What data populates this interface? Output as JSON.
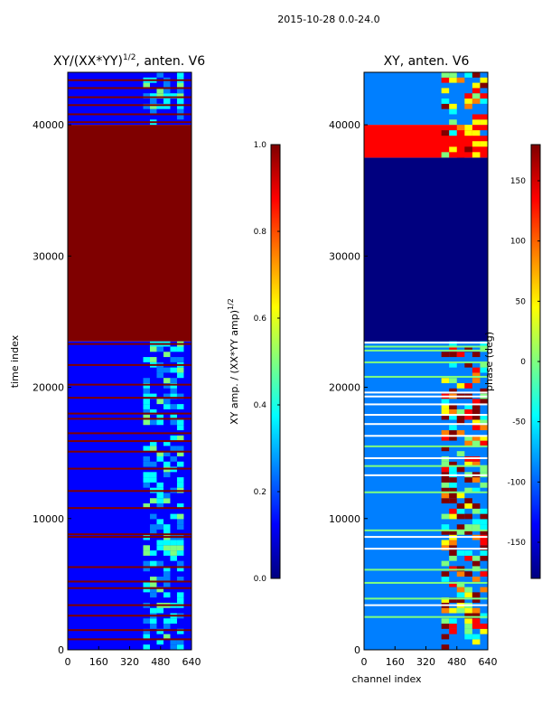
{
  "suptitle": "2015-10-28 0.0-24.0",
  "colormap": [
    "#00007f",
    "#0000ff",
    "#007fff",
    "#00ffff",
    "#7fff7f",
    "#ffff00",
    "#ff7f00",
    "#ff0000",
    "#7f0000"
  ],
  "chart_data": [
    {
      "type": "heatmap",
      "title": "XY/(XX*YY)^1/2, anten. V6",
      "title_main": "XY/(XX*YY)",
      "title_sup": "1/2",
      "title_rest": ", anten. V6",
      "xlabel": "",
      "ylabel": "time index",
      "xlim": [
        0,
        640
      ],
      "ylim": [
        0,
        44000
      ],
      "xticks": [
        "0",
        "160",
        "320",
        "480",
        "640"
      ],
      "yticks": [
        "0",
        "10000",
        "20000",
        "30000",
        "40000"
      ],
      "colorbar": {
        "label": "XY amp. / (XX*YY amp)^1/2",
        "label_main": "XY amp. / (XX*YY amp)",
        "label_sup": "1/2",
        "range": [
          0.0,
          1.0
        ],
        "ticks": [
          "0.0",
          "0.2",
          "0.4",
          "0.6",
          "0.8",
          "1.0"
        ]
      },
      "regions": [
        {
          "y0": 0,
          "y1": 23500,
          "level": 0.15
        },
        {
          "y0": 23500,
          "y1": 40000,
          "level": 1.0
        },
        {
          "y0": 40000,
          "y1": 44000,
          "level": 0.15
        }
      ],
      "bright_band": {
        "x0": 390,
        "x1": 600,
        "level": 0.35
      },
      "stripes": [
        800,
        1500,
        2600,
        3400,
        4700,
        5200,
        6300,
        8600,
        8800,
        10800,
        12100,
        13800,
        15100,
        15900,
        16500,
        17600,
        18000,
        19200,
        20200,
        21700,
        23300,
        40200,
        40800,
        41500,
        42100,
        42800,
        43400
      ]
    },
    {
      "type": "heatmap",
      "title": "XY, anten. V6",
      "xlabel": "channel index",
      "ylabel": "",
      "xlim": [
        0,
        640
      ],
      "ylim": [
        0,
        44000
      ],
      "xticks": [
        "0",
        "160",
        "320",
        "480",
        "640"
      ],
      "yticks": [
        "0",
        "10000",
        "20000",
        "30000",
        "40000"
      ],
      "colorbar": {
        "label": "phase (deg)",
        "range": [
          -180,
          180
        ],
        "ticks": [
          "-150",
          "-100",
          "-50",
          "0",
          "50",
          "100",
          "150"
        ]
      },
      "regions": [
        {
          "y0": 0,
          "y1": 23500,
          "level": 0.22
        },
        {
          "y0": 23500,
          "y1": 37500,
          "level": 0.0
        },
        {
          "y0": 37500,
          "y1": 40000,
          "level": 0.9
        },
        {
          "y0": 40000,
          "y1": 44000,
          "level": 0.3
        }
      ],
      "bright_band": {
        "x0": 400,
        "x1": 640,
        "level": 0.75
      },
      "stripes": [
        2500,
        3400,
        3900,
        5100,
        6100,
        7700,
        8600,
        9100,
        12000,
        13300,
        14000,
        14600,
        15500,
        16300,
        17200,
        17900,
        18700,
        19300,
        19600,
        20800,
        21900,
        22800,
        23100,
        23400
      ]
    }
  ]
}
